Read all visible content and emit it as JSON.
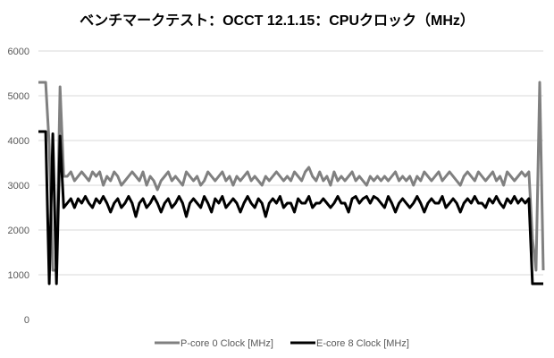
{
  "chart_data": {
    "type": "line",
    "title": "ベンチマークテスト：OCCT 12.1.15：CPUクロック（MHz）",
    "xlabel": "",
    "ylabel": "",
    "ylim": [
      0,
      6000
    ],
    "yticks": [
      "0",
      "1000",
      "2000",
      "3000",
      "4000",
      "5000",
      "6000"
    ],
    "grid": true,
    "legend_position": "bottom",
    "series": [
      {
        "name": "P-core 0 Clock [MHz]",
        "color": "#808080",
        "values": [
          5300,
          5300,
          5300,
          3900,
          1100,
          1100,
          5200,
          3200,
          3200,
          3300,
          3100,
          3200,
          3300,
          3200,
          3100,
          3300,
          3200,
          3300,
          3000,
          3200,
          3100,
          3300,
          3200,
          3000,
          3100,
          3200,
          3300,
          3200,
          3100,
          3300,
          3000,
          3200,
          3100,
          2900,
          3100,
          3200,
          3300,
          3100,
          3200,
          3100,
          3000,
          3300,
          3200,
          3100,
          3200,
          3000,
          3100,
          3300,
          3200,
          3100,
          3200,
          3300,
          3100,
          3200,
          3000,
          3200,
          3100,
          3200,
          3300,
          3100,
          3200,
          3100,
          3000,
          3200,
          3100,
          3200,
          3300,
          3200,
          3100,
          3200,
          3100,
          3300,
          3200,
          3100,
          3300,
          3400,
          3200,
          3100,
          3300,
          3100,
          3200,
          3000,
          3300,
          3100,
          3200,
          3100,
          3200,
          3300,
          3100,
          3200,
          3100,
          3000,
          3200,
          3100,
          3200,
          3100,
          3200,
          3100,
          3200,
          3300,
          3100,
          3200,
          3100,
          3200,
          3000,
          3200,
          3100,
          3300,
          3200,
          3100,
          3200,
          3300,
          3100,
          3200,
          3300,
          3200,
          3100,
          3000,
          3200,
          3300,
          3200,
          3100,
          3300,
          3200,
          3100,
          3200,
          3300,
          3100,
          3200,
          3000,
          3300,
          3200,
          3100,
          3200,
          3300,
          3200,
          3300,
          1800,
          1100,
          5300,
          1100
        ]
      },
      {
        "name": "E-core 8 Clock [MHz]",
        "color": "#000000",
        "values": [
          4200,
          4200,
          4200,
          800,
          4150,
          800,
          4100,
          2500,
          2600,
          2700,
          2500,
          2700,
          2600,
          2750,
          2600,
          2500,
          2700,
          2600,
          2750,
          2600,
          2400,
          2600,
          2700,
          2500,
          2600,
          2750,
          2600,
          2300,
          2600,
          2700,
          2500,
          2600,
          2750,
          2600,
          2400,
          2600,
          2700,
          2500,
          2600,
          2750,
          2600,
          2300,
          2600,
          2700,
          2600,
          2500,
          2750,
          2600,
          2400,
          2700,
          2600,
          2750,
          2500,
          2600,
          2700,
          2600,
          2400,
          2600,
          2750,
          2600,
          2500,
          2700,
          2600,
          2300,
          2600,
          2700,
          2600,
          2750,
          2500,
          2600,
          2600,
          2400,
          2700,
          2600,
          2600,
          2750,
          2500,
          2600,
          2600,
          2700,
          2600,
          2500,
          2600,
          2750,
          2600,
          2600,
          2400,
          2700,
          2750,
          2600,
          2700,
          2750,
          2600,
          2750,
          2700,
          2600,
          2500,
          2750,
          2600,
          2400,
          2600,
          2700,
          2600,
          2500,
          2600,
          2750,
          2600,
          2400,
          2600,
          2700,
          2600,
          2600,
          2750,
          2500,
          2600,
          2700,
          2600,
          2400,
          2600,
          2700,
          2600,
          2750,
          2600,
          2600,
          2500,
          2700,
          2600,
          2750,
          2600,
          2500,
          2700,
          2600,
          2750,
          2600,
          2700,
          2600,
          2700,
          800,
          800,
          800,
          800
        ]
      }
    ]
  }
}
